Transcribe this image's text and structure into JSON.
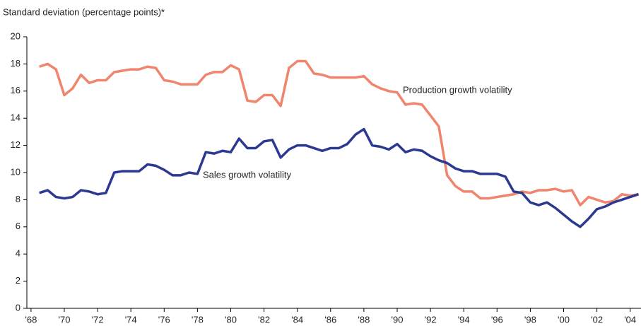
{
  "chart_data": {
    "type": "line",
    "y_axis_label": "Standard deviation (percentage points)*",
    "x": [
      1968.5,
      1969,
      1969.5,
      1970,
      1970.5,
      1971,
      1971.5,
      1972,
      1972.5,
      1973,
      1973.5,
      1974,
      1974.5,
      1975,
      1975.5,
      1976,
      1976.5,
      1977,
      1977.5,
      1978,
      1978.5,
      1979,
      1979.5,
      1980,
      1980.5,
      1981,
      1981.5,
      1982,
      1982.5,
      1983,
      1983.5,
      1984,
      1984.5,
      1985,
      1985.5,
      1986,
      1986.5,
      1987,
      1987.5,
      1988,
      1988.5,
      1989,
      1989.5,
      1990,
      1990.5,
      1991,
      1991.5,
      1992,
      1992.5,
      1993,
      1993.5,
      1994,
      1994.5,
      1995,
      1995.5,
      1996,
      1996.5,
      1997,
      1997.5,
      1998,
      1998.5,
      1999,
      1999.5,
      2000,
      2000.5,
      2001,
      2001.5,
      2002,
      2002.5,
      2003,
      2003.5,
      2004,
      2004.5
    ],
    "series": [
      {
        "name": "Production growth volatility",
        "color": "#f0846c",
        "values": [
          17.8,
          18.0,
          17.6,
          15.7,
          16.2,
          17.2,
          16.6,
          16.8,
          16.8,
          17.4,
          17.5,
          17.6,
          17.6,
          17.8,
          17.7,
          16.8,
          16.7,
          16.5,
          16.5,
          16.5,
          17.2,
          17.4,
          17.4,
          17.9,
          17.6,
          15.3,
          15.2,
          15.7,
          15.7,
          14.9,
          17.7,
          18.2,
          18.2,
          17.3,
          17.2,
          17.0,
          17.0,
          17.0,
          17.0,
          17.1,
          16.5,
          16.2,
          16.0,
          15.9,
          15.0,
          15.1,
          15.0,
          14.2,
          13.4,
          9.8,
          9.0,
          8.6,
          8.6,
          8.1,
          8.1,
          8.2,
          8.3,
          8.4,
          8.6,
          8.5,
          8.7,
          8.7,
          8.8,
          8.6,
          8.7,
          7.6,
          8.2,
          8.0,
          7.8,
          7.9,
          8.4,
          8.3,
          8.4
        ]
      },
      {
        "name": "Sales growth volatility",
        "color": "#2b3990",
        "values": [
          8.5,
          8.7,
          8.2,
          8.1,
          8.2,
          8.7,
          8.6,
          8.4,
          8.5,
          10.0,
          10.1,
          10.1,
          10.1,
          10.6,
          10.5,
          10.2,
          9.8,
          9.8,
          10.0,
          9.9,
          11.5,
          11.4,
          11.6,
          11.5,
          12.5,
          11.8,
          11.8,
          12.3,
          12.4,
          11.1,
          11.7,
          12.0,
          12.0,
          11.8,
          11.6,
          11.8,
          11.8,
          12.1,
          12.8,
          13.2,
          12.0,
          11.9,
          11.7,
          12.1,
          11.5,
          11.7,
          11.6,
          11.2,
          10.9,
          10.7,
          10.3,
          10.1,
          10.1,
          9.9,
          9.9,
          9.9,
          9.7,
          8.6,
          8.5,
          7.8,
          7.6,
          7.8,
          7.4,
          6.9,
          6.4,
          6.0,
          6.6,
          7.3,
          7.5,
          7.8,
          8.0,
          8.2,
          8.4
        ]
      }
    ],
    "xlim": [
      1967.75,
      2004.65
    ],
    "xticks": [
      {
        "value": 1968,
        "label": "'68"
      },
      {
        "value": 1970,
        "label": "'70"
      },
      {
        "value": 1972,
        "label": "'72"
      },
      {
        "value": 1974,
        "label": "'74"
      },
      {
        "value": 1976,
        "label": "'76"
      },
      {
        "value": 1978,
        "label": "'78"
      },
      {
        "value": 1980,
        "label": "'80"
      },
      {
        "value": 1982,
        "label": "'82"
      },
      {
        "value": 1984,
        "label": "'84"
      },
      {
        "value": 1986,
        "label": "'86"
      },
      {
        "value": 1988,
        "label": "'88"
      },
      {
        "value": 1990,
        "label": "'90"
      },
      {
        "value": 1992,
        "label": "'92"
      },
      {
        "value": 1994,
        "label": "'94"
      },
      {
        "value": 1996,
        "label": "'96"
      },
      {
        "value": 1998,
        "label": "'98"
      },
      {
        "value": 2000,
        "label": "'00"
      },
      {
        "value": 2002,
        "label": "'02"
      },
      {
        "value": 2004,
        "label": "'04"
      }
    ],
    "ylim": [
      0,
      20
    ],
    "yticks": [
      0,
      2,
      4,
      6,
      8,
      10,
      12,
      14,
      16,
      18,
      20
    ],
    "grid": false
  }
}
